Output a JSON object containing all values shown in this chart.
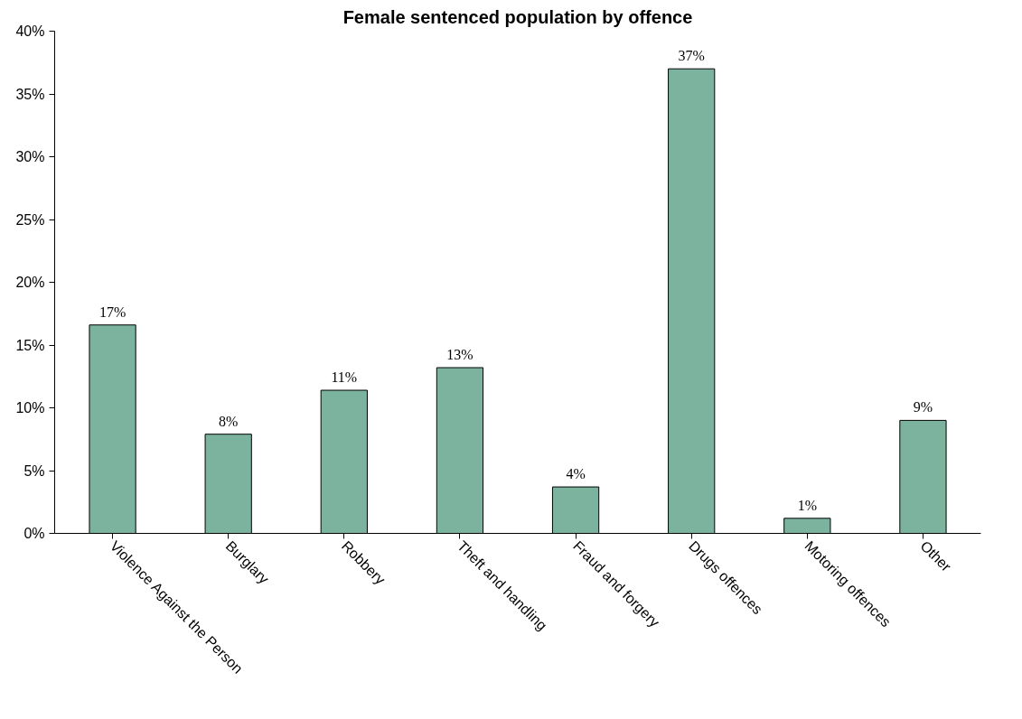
{
  "chart_data": {
    "type": "bar",
    "title": "Female sentenced population by offence",
    "categories": [
      "Violence Against the Person",
      "Burglary",
      "Robbery",
      "Theft and handling",
      "Fraud and forgery",
      "Drugs offences",
      "Motoring offences",
      "Other"
    ],
    "values": [
      16.6,
      7.9,
      11.4,
      13.2,
      3.7,
      37.0,
      1.2,
      9.0
    ],
    "value_labels": [
      "17%",
      "8%",
      "11%",
      "13%",
      "4%",
      "37%",
      "1%",
      "9%"
    ],
    "color": "#7bb39e",
    "ylim": [
      0,
      40
    ],
    "yticks": [
      {
        "value": 0,
        "label": "0%"
      },
      {
        "value": 5,
        "label": "5%"
      },
      {
        "value": 10,
        "label": "10%"
      },
      {
        "value": 15,
        "label": "15%"
      },
      {
        "value": 20,
        "label": "20%"
      },
      {
        "value": 25,
        "label": "25%"
      },
      {
        "value": 30,
        "label": "30%"
      },
      {
        "value": 35,
        "label": "35%"
      },
      {
        "value": 40,
        "label": "40%"
      }
    ],
    "grid": false
  }
}
